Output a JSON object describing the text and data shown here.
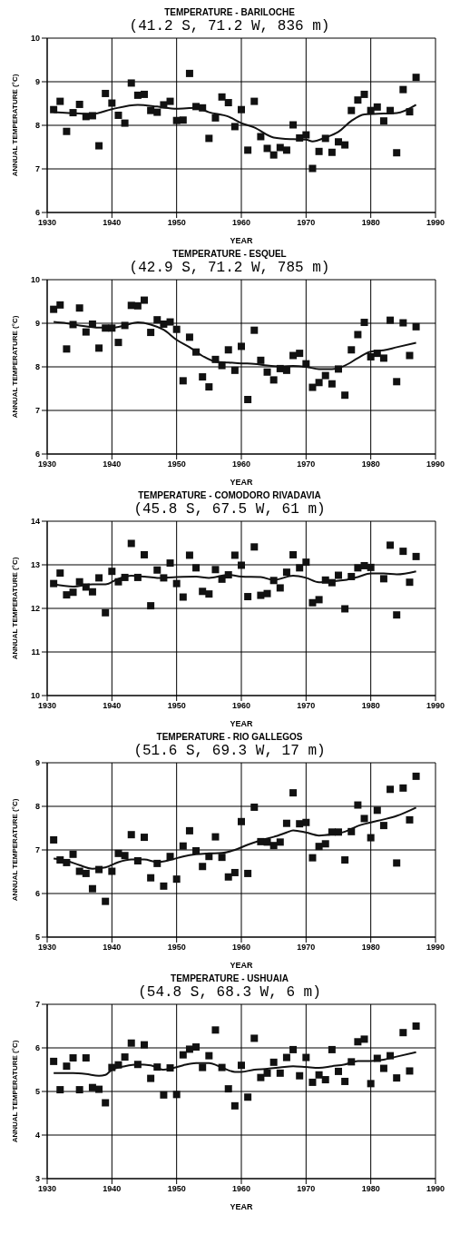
{
  "chart_data": [
    {
      "type": "scatter",
      "title": "TEMPERATURE - BARILOCHE",
      "subtitle": "(41.2 S, 71.2 W, 836 m)",
      "xlabel": "YEAR",
      "ylabel": "ANNUAL TEMPERATURE (°C)",
      "xlim": [
        1930,
        1990
      ],
      "xticks": [
        1930,
        1940,
        1950,
        1960,
        1970,
        1980,
        1990
      ],
      "ylim": [
        6,
        10
      ],
      "yticks": [
        6,
        7,
        8,
        9,
        10
      ],
      "grid": true,
      "series": [
        {
          "marker": "square",
          "color": "#111111",
          "x": [
            1931,
            1932,
            1933,
            1934,
            1935,
            1936,
            1937,
            1938,
            1939,
            1940,
            1941,
            1942,
            1943,
            1944,
            1945,
            1946,
            1947,
            1948,
            1949,
            1950,
            1951,
            1952,
            1953,
            1954,
            1955,
            1956,
            1957,
            1958,
            1959,
            1960,
            1961,
            1962,
            1963,
            1964,
            1965,
            1966,
            1967,
            1968,
            1969,
            1970,
            1971,
            1972,
            1973,
            1974,
            1975,
            1976,
            1977,
            1978,
            1979,
            1980,
            1981,
            1982,
            1983,
            1984,
            1985,
            1986,
            1987
          ],
          "values": [
            8.36,
            8.55,
            7.86,
            8.29,
            8.48,
            8.2,
            8.22,
            7.53,
            8.73,
            8.51,
            8.23,
            8.05,
            8.97,
            8.69,
            8.71,
            8.34,
            8.3,
            8.47,
            8.55,
            8.11,
            8.12,
            9.19,
            8.43,
            8.4,
            7.7,
            8.17,
            8.65,
            8.52,
            7.97,
            8.36,
            7.43,
            8.55,
            7.74,
            7.47,
            7.32,
            7.49,
            7.43,
            8.01,
            7.71,
            7.78,
            7.01,
            7.4,
            7.7,
            7.38,
            7.62,
            7.55,
            8.34,
            8.58,
            8.71,
            8.34,
            8.42,
            8.1,
            8.34,
            7.37,
            8.82,
            8.31,
            9.1
          ]
        },
        {
          "type": "line",
          "marker": "none",
          "color": "#111111",
          "x": [
            1931,
            1935,
            1937,
            1940,
            1944,
            1947,
            1950,
            1953,
            1955,
            1958,
            1960,
            1962,
            1965,
            1968,
            1970,
            1971,
            1973,
            1975,
            1977,
            1979,
            1982,
            1984,
            1987
          ],
          "values": [
            8.3,
            8.27,
            8.26,
            8.37,
            8.47,
            8.43,
            8.38,
            8.4,
            8.3,
            8.2,
            8.05,
            7.95,
            7.72,
            7.68,
            7.67,
            7.63,
            7.72,
            7.85,
            8.1,
            8.25,
            8.27,
            8.28,
            8.47
          ]
        }
      ]
    },
    {
      "type": "scatter",
      "title": "TEMPERATURE - ESQUEL",
      "subtitle": "(42.9 S, 71.2 W, 785 m)",
      "xlabel": "YEAR",
      "ylabel": "ANNUAL TEMPERATURE (°C)",
      "xlim": [
        1930,
        1990
      ],
      "xticks": [
        1930,
        1940,
        1950,
        1960,
        1970,
        1980,
        1990
      ],
      "ylim": [
        6,
        10
      ],
      "yticks": [
        6,
        7,
        8,
        9,
        10
      ],
      "grid": true,
      "series": [
        {
          "marker": "square",
          "color": "#111111",
          "x": [
            1931,
            1932,
            1933,
            1934,
            1935,
            1936,
            1937,
            1938,
            1939,
            1940,
            1941,
            1942,
            1943,
            1944,
            1945,
            1946,
            1947,
            1948,
            1949,
            1950,
            1951,
            1952,
            1953,
            1954,
            1955,
            1956,
            1957,
            1958,
            1959,
            1960,
            1961,
            1962,
            1963,
            1964,
            1965,
            1966,
            1967,
            1968,
            1969,
            1970,
            1971,
            1972,
            1973,
            1974,
            1975,
            1976,
            1977,
            1978,
            1979,
            1980,
            1981,
            1982,
            1983,
            1984,
            1985,
            1986,
            1987
          ],
          "values": [
            9.32,
            9.42,
            8.41,
            8.97,
            9.35,
            8.8,
            8.98,
            8.43,
            8.89,
            8.89,
            8.56,
            8.95,
            9.41,
            9.4,
            9.53,
            8.79,
            9.08,
            8.98,
            9.03,
            8.86,
            7.68,
            8.68,
            8.34,
            7.77,
            7.54,
            8.17,
            8.03,
            8.39,
            7.92,
            8.47,
            7.25,
            8.84,
            8.15,
            7.88,
            7.7,
            7.96,
            7.92,
            8.26,
            8.31,
            8.07,
            7.53,
            7.64,
            7.8,
            7.61,
            7.95,
            7.35,
            8.39,
            8.74,
            9.02,
            8.23,
            8.31,
            8.2,
            9.07,
            7.66,
            9.01,
            8.26,
            8.92
          ]
        },
        {
          "type": "line",
          "marker": "none",
          "color": "#111111",
          "x": [
            1931,
            1933,
            1935,
            1938,
            1940,
            1942,
            1944,
            1946,
            1948,
            1950,
            1952,
            1954,
            1956,
            1958,
            1960,
            1962,
            1964,
            1966,
            1968,
            1970,
            1972,
            1974,
            1976,
            1978,
            1980,
            1982,
            1984,
            1987
          ],
          "values": [
            9.03,
            9.0,
            8.95,
            8.9,
            8.9,
            8.95,
            9.02,
            8.97,
            8.85,
            8.62,
            8.45,
            8.25,
            8.12,
            8.1,
            8.08,
            8.07,
            8.03,
            8.01,
            8.02,
            8.0,
            7.95,
            7.95,
            8.03,
            8.2,
            8.35,
            8.38,
            8.45,
            8.55
          ]
        }
      ]
    },
    {
      "type": "scatter",
      "title": "TEMPERATURE - COMODORO RIVADAVIA",
      "subtitle": "(45.8 S, 67.5 W, 61 m)",
      "xlabel": "YEAR",
      "ylabel": "ANNUAL TEMPERATURE (°C)",
      "xlim": [
        1930,
        1990
      ],
      "xticks": [
        1930,
        1940,
        1950,
        1960,
        1970,
        1980,
        1990
      ],
      "ylim": [
        10,
        14
      ],
      "yticks": [
        10,
        11,
        12,
        13,
        14
      ],
      "grid": true,
      "series": [
        {
          "marker": "square",
          "color": "#111111",
          "x": [
            1931,
            1932,
            1933,
            1934,
            1935,
            1936,
            1937,
            1938,
            1939,
            1940,
            1941,
            1942,
            1943,
            1944,
            1945,
            1946,
            1947,
            1948,
            1949,
            1950,
            1951,
            1952,
            1953,
            1954,
            1955,
            1956,
            1957,
            1958,
            1959,
            1960,
            1961,
            1962,
            1963,
            1964,
            1965,
            1966,
            1967,
            1968,
            1969,
            1970,
            1971,
            1972,
            1973,
            1974,
            1975,
            1976,
            1977,
            1978,
            1979,
            1980,
            1982,
            1983,
            1984,
            1985,
            1986,
            1987
          ],
          "values": [
            12.57,
            12.81,
            12.31,
            12.37,
            12.61,
            12.49,
            12.38,
            12.7,
            11.9,
            12.85,
            12.61,
            12.71,
            13.49,
            12.71,
            13.23,
            12.06,
            12.88,
            12.7,
            13.04,
            12.57,
            12.26,
            13.22,
            12.93,
            12.39,
            12.33,
            12.89,
            12.67,
            12.77,
            13.22,
            12.99,
            12.27,
            13.41,
            12.3,
            12.34,
            12.64,
            12.47,
            12.83,
            13.23,
            12.93,
            13.06,
            12.13,
            12.2,
            12.65,
            12.59,
            12.76,
            11.99,
            12.73,
            12.93,
            12.98,
            12.94,
            12.68,
            13.45,
            11.85,
            13.31,
            12.6,
            13.19
          ]
        },
        {
          "type": "line",
          "marker": "none",
          "color": "#111111",
          "x": [
            1931,
            1934,
            1937,
            1939,
            1941,
            1943,
            1945,
            1947,
            1950,
            1953,
            1955,
            1958,
            1960,
            1963,
            1965,
            1968,
            1970,
            1972,
            1974,
            1976,
            1978,
            1980,
            1982,
            1984,
            1987
          ],
          "values": [
            12.55,
            12.5,
            12.55,
            12.55,
            12.68,
            12.75,
            12.73,
            12.7,
            12.72,
            12.73,
            12.7,
            12.77,
            12.73,
            12.72,
            12.65,
            12.75,
            12.7,
            12.6,
            12.62,
            12.65,
            12.72,
            12.8,
            12.8,
            12.78,
            12.85
          ]
        }
      ]
    },
    {
      "type": "scatter",
      "title": "TEMPERATURE - RIO GALLEGOS",
      "subtitle": "(51.6 S, 69.3 W, 17 m)",
      "xlabel": "YEAR",
      "ylabel": "ANNUAL TEMPERATURE (°C)",
      "xlim": [
        1930,
        1990
      ],
      "xticks": [
        1930,
        1940,
        1950,
        1960,
        1970,
        1980,
        1990
      ],
      "ylim": [
        5,
        9
      ],
      "yticks": [
        5,
        6,
        7,
        8,
        9
      ],
      "grid": true,
      "series": [
        {
          "marker": "square",
          "color": "#111111",
          "x": [
            1931,
            1932,
            1933,
            1934,
            1935,
            1936,
            1937,
            1938,
            1939,
            1940,
            1941,
            1942,
            1943,
            1944,
            1945,
            1946,
            1947,
            1948,
            1949,
            1950,
            1951,
            1952,
            1953,
            1954,
            1955,
            1956,
            1957,
            1958,
            1959,
            1960,
            1961,
            1962,
            1963,
            1964,
            1965,
            1966,
            1967,
            1968,
            1969,
            1970,
            1971,
            1972,
            1973,
            1974,
            1975,
            1976,
            1977,
            1978,
            1979,
            1980,
            1981,
            1982,
            1983,
            1984,
            1985,
            1986,
            1987
          ],
          "values": [
            7.23,
            6.77,
            6.71,
            6.9,
            6.51,
            6.46,
            6.11,
            6.55,
            5.82,
            6.51,
            6.92,
            6.87,
            7.35,
            6.75,
            7.29,
            6.36,
            6.69,
            6.17,
            6.85,
            6.33,
            7.09,
            7.44,
            6.98,
            6.62,
            6.85,
            7.3,
            6.83,
            6.38,
            6.48,
            7.65,
            6.46,
            7.98,
            7.19,
            7.18,
            7.1,
            7.18,
            7.61,
            8.31,
            7.6,
            7.63,
            6.82,
            7.08,
            7.14,
            7.41,
            7.41,
            6.77,
            7.42,
            8.03,
            7.72,
            7.28,
            7.91,
            7.56,
            8.39,
            6.7,
            8.42,
            7.69,
            8.69
          ]
        },
        {
          "type": "line",
          "marker": "none",
          "color": "#111111",
          "x": [
            1931,
            1933,
            1935,
            1937,
            1939,
            1941,
            1943,
            1945,
            1947,
            1949,
            1951,
            1953,
            1955,
            1957,
            1959,
            1961,
            1963,
            1965,
            1967,
            1968,
            1970,
            1972,
            1974,
            1976,
            1978,
            1980,
            1982,
            1984,
            1987
          ],
          "values": [
            6.8,
            6.75,
            6.65,
            6.57,
            6.6,
            6.72,
            6.78,
            6.78,
            6.72,
            6.77,
            6.85,
            6.9,
            6.92,
            6.93,
            7.0,
            7.12,
            7.22,
            7.3,
            7.4,
            7.45,
            7.4,
            7.33,
            7.36,
            7.42,
            7.55,
            7.63,
            7.7,
            7.78,
            7.97
          ]
        }
      ]
    },
    {
      "type": "scatter",
      "title": "TEMPERATURE - USHUAIA",
      "subtitle": "(54.8 S, 68.3 W, 6 m)",
      "xlabel": "YEAR",
      "ylabel": "ANNUAL TEMPERATURE (°C)",
      "xlim": [
        1930,
        1990
      ],
      "xticks": [
        1930,
        1940,
        1950,
        1960,
        1970,
        1980,
        1990
      ],
      "ylim": [
        3,
        7
      ],
      "yticks": [
        3,
        4,
        5,
        6,
        7
      ],
      "grid": true,
      "series": [
        {
          "marker": "square",
          "color": "#111111",
          "x": [
            1931,
            1932,
            1933,
            1934,
            1935,
            1936,
            1937,
            1938,
            1939,
            1940,
            1941,
            1942,
            1943,
            1944,
            1945,
            1946,
            1947,
            1948,
            1949,
            1950,
            1951,
            1952,
            1953,
            1954,
            1955,
            1956,
            1957,
            1958,
            1959,
            1960,
            1961,
            1962,
            1963,
            1964,
            1965,
            1966,
            1967,
            1968,
            1969,
            1970,
            1971,
            1972,
            1973,
            1974,
            1975,
            1976,
            1977,
            1978,
            1979,
            1980,
            1981,
            1982,
            1983,
            1984,
            1985,
            1986,
            1987
          ],
          "values": [
            5.69,
            5.04,
            5.58,
            5.77,
            5.04,
            5.77,
            5.09,
            5.05,
            4.74,
            5.55,
            5.61,
            5.79,
            6.11,
            5.62,
            6.07,
            5.3,
            5.56,
            4.92,
            5.54,
            4.93,
            5.84,
            5.97,
            6.02,
            5.55,
            5.82,
            6.41,
            5.55,
            5.06,
            4.67,
            5.6,
            4.87,
            6.22,
            5.32,
            5.42,
            5.67,
            5.42,
            5.78,
            5.96,
            5.36,
            5.78,
            5.21,
            5.38,
            5.27,
            5.96,
            5.46,
            5.23,
            5.68,
            6.14,
            6.2,
            5.18,
            5.76,
            5.53,
            5.82,
            5.31,
            6.35,
            5.47,
            6.5
          ]
        },
        {
          "type": "line",
          "marker": "none",
          "color": "#111111",
          "x": [
            1931,
            1934,
            1936,
            1938,
            1939,
            1940,
            1942,
            1944,
            1946,
            1948,
            1949,
            1951,
            1953,
            1955,
            1957,
            1959,
            1960,
            1962,
            1964,
            1966,
            1968,
            1970,
            1972,
            1974,
            1976,
            1978,
            1980,
            1982,
            1984,
            1987
          ],
          "values": [
            5.42,
            5.42,
            5.4,
            5.36,
            5.38,
            5.5,
            5.58,
            5.62,
            5.6,
            5.5,
            5.52,
            5.6,
            5.65,
            5.65,
            5.55,
            5.45,
            5.45,
            5.5,
            5.52,
            5.55,
            5.58,
            5.56,
            5.54,
            5.58,
            5.62,
            5.7,
            5.7,
            5.73,
            5.8,
            5.9
          ]
        }
      ]
    }
  ]
}
